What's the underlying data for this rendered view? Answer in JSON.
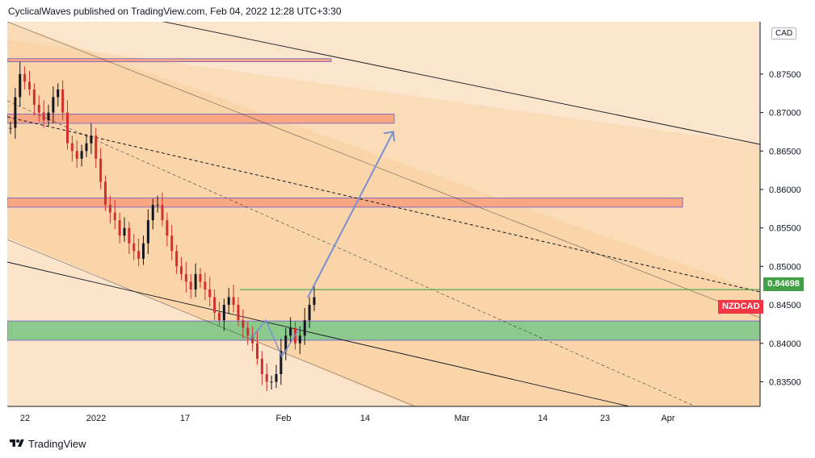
{
  "header": {
    "publisher_line": "CyclicalWaves published on TradingView.com, Feb 04, 2022 12:28 UTC+3:30"
  },
  "footer": {
    "brand": "TradingView",
    "logo_icon": "tradingview-logo-icon"
  },
  "colors": {
    "background": "#fbe5cc",
    "resistance_zone": "#f7a883",
    "support_zone": "#8cc98c",
    "projection_arrow": "#7b8fd4",
    "last_price_badge": "#43a047",
    "symbol_badge": "#f23645",
    "candle_up": "#131722",
    "candle_down": "#d32f2f"
  },
  "chart_data": {
    "type": "candlestick",
    "symbol": "NZDCAD",
    "currency": "CAD",
    "last_price": "0.84698",
    "ylim": [
      0.8318,
      0.8818
    ],
    "y_ticks": [
      "0.87500",
      "0.87000",
      "0.86500",
      "0.86000",
      "0.85500",
      "0.85000",
      "0.84500",
      "0.84000",
      "0.83500"
    ],
    "x_ticks": [
      "22",
      "2022",
      "17",
      "Feb",
      "14",
      "Mar",
      "14",
      "23",
      "Apr"
    ],
    "price_path": [
      0.868,
      0.872,
      0.875,
      0.874,
      0.873,
      0.871,
      0.87,
      0.869,
      0.87,
      0.872,
      0.873,
      0.87,
      0.866,
      0.865,
      0.864,
      0.865,
      0.866,
      0.867,
      0.864,
      0.861,
      0.858,
      0.857,
      0.856,
      0.854,
      0.855,
      0.853,
      0.852,
      0.851,
      0.853,
      0.856,
      0.858,
      0.858,
      0.856,
      0.854,
      0.852,
      0.85,
      0.849,
      0.848,
      0.847,
      0.849,
      0.848,
      0.847,
      0.846,
      0.844,
      0.843,
      0.845,
      0.846,
      0.845,
      0.843,
      0.842,
      0.841,
      0.84,
      0.838,
      0.836,
      0.835,
      0.835,
      0.836,
      0.839,
      0.841,
      0.842,
      0.84,
      0.841,
      0.843,
      0.845,
      0.846
    ],
    "zones": [
      {
        "name": "resistance-zone-top",
        "color": "#f7a883",
        "y_top": 0.877,
        "y_bottom": 0.8766
      },
      {
        "name": "resistance-zone-upper",
        "color": "#f7a883",
        "y_top": 0.8698,
        "y_bottom": 0.8686
      },
      {
        "name": "resistance-zone-mid",
        "color": "#f7a883",
        "y_top": 0.8589,
        "y_bottom": 0.8577
      },
      {
        "name": "support-zone",
        "color": "#8cc98c",
        "y_top": 0.8429,
        "y_bottom": 0.8404
      }
    ],
    "last_price_line": 0.84698,
    "projection": {
      "from": "Feb",
      "to": "14",
      "from_price": 0.847,
      "to_price": 0.8675
    }
  }
}
